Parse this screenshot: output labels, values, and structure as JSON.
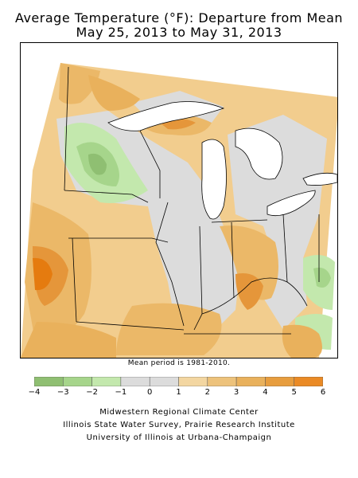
{
  "title_line1": "Average Temperature (°F): Departure from Mean",
  "title_line2": "May 25, 2013 to May 31, 2013",
  "note": "Mean period is 1981-2010.",
  "legend": {
    "ticks": [
      "−4",
      "−3",
      "−2",
      "−1",
      "0",
      "1",
      "2",
      "3",
      "4",
      "5",
      "6"
    ],
    "colors": [
      "#8fbf72",
      "#a6d58b",
      "#c3e8ad",
      "#dcdcdc",
      "#dcdcdc",
      "#f3d6a1",
      "#edc27b",
      "#e9b15c",
      "#e79d3e",
      "#ea8a25"
    ]
  },
  "colors": {
    "warm_light": "#f2cd8e",
    "warm_mid": "#ebb868",
    "warm_strong": "#e5963a",
    "warm_max": "#e57b0f",
    "neutral": "#dcdcdc",
    "cool_light": "#bfe6a6",
    "cool_mid": "#a8d58f",
    "cool_strong": "#8bbd73",
    "lake": "#ffffff",
    "border": "#000000"
  },
  "credits": {
    "line1": "Midwestern Regional Climate Center",
    "line2": "Illinois State Water Survey, Prairie Research Institute",
    "line3": "University of Illinois at Urbana-Champaign"
  }
}
